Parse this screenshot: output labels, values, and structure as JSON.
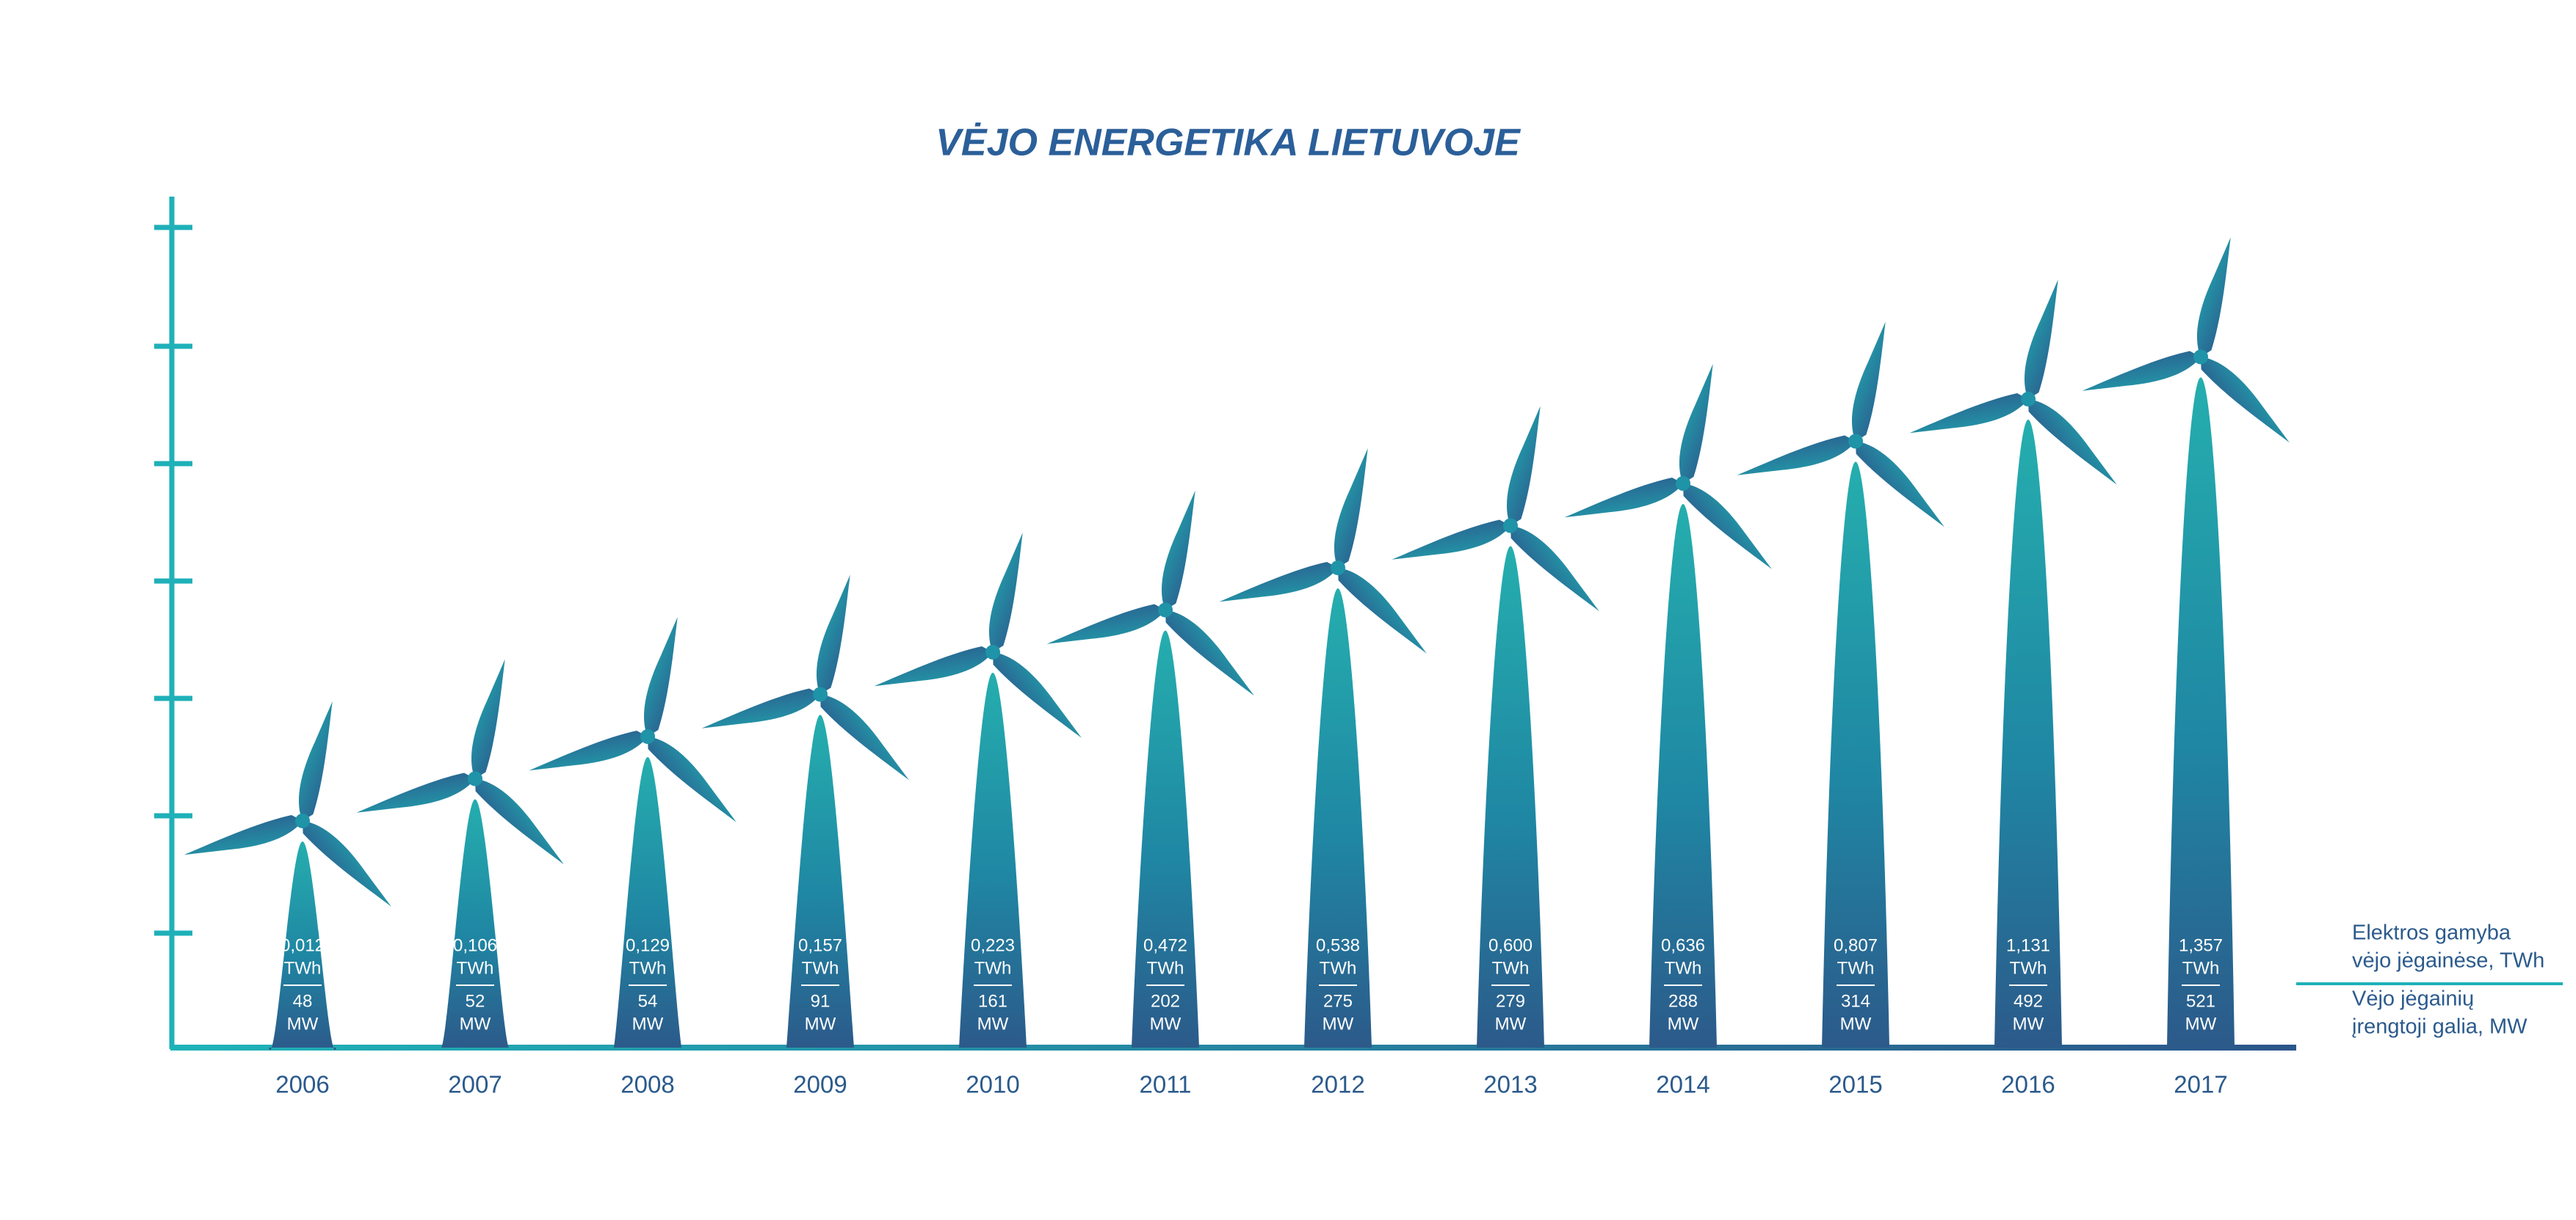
{
  "chart_data": {
    "type": "pictogram",
    "title": "VĖJO ENERGETIKA LIETUVOJE",
    "categories": [
      "2006",
      "2007",
      "2008",
      "2009",
      "2010",
      "2011",
      "2012",
      "2013",
      "2014",
      "2015",
      "2016",
      "2017"
    ],
    "series": [
      {
        "name": "Elektros gamyba vėjo jėgainėse, TWh",
        "legend_lines": [
          "Elektros gamyba",
          "vėjo jėgainėse, TWh"
        ],
        "unit": "TWh",
        "values": [
          0.012,
          0.106,
          0.129,
          0.157,
          0.223,
          0.472,
          0.538,
          0.6,
          0.636,
          0.807,
          1.131,
          1.357
        ],
        "value_labels": [
          "0,012",
          "0,106",
          "0,129",
          "0,157",
          "0,223",
          "0,472",
          "0,538",
          "0,600",
          "0,636",
          "0,807",
          "1,131",
          "1,357"
        ]
      },
      {
        "name": "Vėjo jėgainių įrengtoji galia, MW",
        "legend_lines": [
          "Vėjo jėgainių",
          "įrengtoji galia, MW"
        ],
        "unit": "MW",
        "values": [
          48,
          52,
          54,
          91,
          161,
          202,
          275,
          279,
          288,
          314,
          492,
          521
        ]
      }
    ]
  }
}
